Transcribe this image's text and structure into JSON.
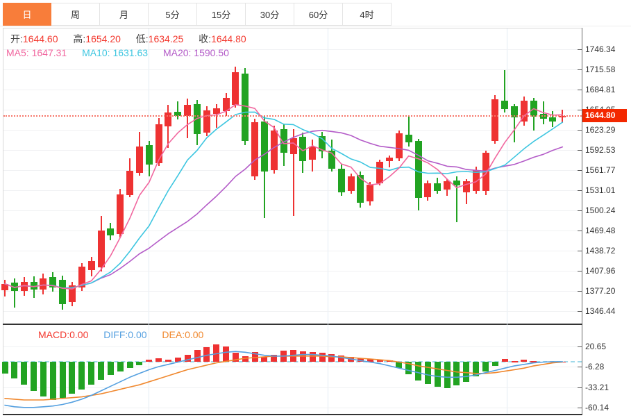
{
  "tabs": {
    "items": [
      {
        "label": "日",
        "active": true
      },
      {
        "label": "周",
        "active": false
      },
      {
        "label": "月",
        "active": false
      },
      {
        "label": "5分",
        "active": false
      },
      {
        "label": "15分",
        "active": false
      },
      {
        "label": "30分",
        "active": false
      },
      {
        "label": "60分",
        "active": false
      },
      {
        "label": "4时",
        "active": false
      }
    ]
  },
  "quote_bar": {
    "open_label": "开:",
    "open_value": "1644.60",
    "high_label": "高:",
    "high_value": "1654.20",
    "low_label": "低:",
    "low_value": "1634.25",
    "close_label": "收:",
    "close_value": "1644.80"
  },
  "ma_bar": {
    "ma5_label": "MA5:",
    "ma5_value": "1647.31",
    "ma10_label": "MA10:",
    "ma10_value": "1631.63",
    "ma20_label": "MA20:",
    "ma20_value": "1590.50"
  },
  "macd_bar": {
    "macd_label": "MACD:",
    "macd_value": "0.00",
    "diff_label": "DIFF:",
    "diff_value": "0.00",
    "dea_label": "DEA:",
    "dea_value": "0.00"
  },
  "current_price": {
    "value": "1644.80"
  },
  "colors": {
    "up": "#ee3232",
    "down": "#22a322",
    "ma5": "#f1679f",
    "ma10": "#3ec6e0",
    "ma20": "#b45cc8",
    "diff": "#55a0e0",
    "dea": "#f0882e",
    "quote_value": "#f3392f",
    "tab_active": "#f87d3a",
    "price_badge": "#f32800",
    "dotted_line": "#f7766a",
    "zero_line": "#9fd9ea"
  },
  "chart_data": {
    "type": "candlestick_with_macd",
    "title": "",
    "description": "Daily candlestick chart (Chinese convention: red=up, green=down) with MA5/MA10/MA20 overlays, current price 1644.80, and MACD sub-panel (values estimated from pixels)",
    "y_axis": {
      "max": 1746.34,
      "min": 1346.44,
      "labels": [
        1746.34,
        1715.58,
        1684.81,
        1654.05,
        1623.29,
        1592.53,
        1561.77,
        1531.01,
        1500.24,
        1469.48,
        1438.72,
        1407.96,
        1377.2,
        1346.44
      ]
    },
    "macd_axis": {
      "max": 20.65,
      "min": -60.14,
      "labels": [
        20.65,
        -6.28,
        -33.21,
        -60.14
      ]
    },
    "current_price": 1644.8,
    "ma_last": {
      "ma5": 1647.31,
      "ma10": 1631.63,
      "ma20": 1590.5
    },
    "candles": [
      [
        1378,
        1394,
        1369,
        1388
      ],
      [
        1390,
        1396,
        1352,
        1377
      ],
      [
        1377,
        1398,
        1370,
        1391
      ],
      [
        1391,
        1400,
        1367,
        1379
      ],
      [
        1379,
        1404,
        1372,
        1396
      ],
      [
        1398,
        1406,
        1376,
        1383
      ],
      [
        1394,
        1401,
        1349,
        1357
      ],
      [
        1360,
        1391,
        1354,
        1386
      ],
      [
        1383,
        1420,
        1377,
        1414
      ],
      [
        1409,
        1429,
        1399,
        1423
      ],
      [
        1413,
        1492,
        1407,
        1470
      ],
      [
        1473,
        1481,
        1455,
        1462
      ],
      [
        1464,
        1533,
        1459,
        1525
      ],
      [
        1524,
        1580,
        1520,
        1561
      ],
      [
        1558,
        1620,
        1553,
        1598
      ],
      [
        1600,
        1606,
        1552,
        1570
      ],
      [
        1572,
        1641,
        1568,
        1632
      ],
      [
        1629,
        1661,
        1596,
        1650
      ],
      [
        1651,
        1667,
        1639,
        1644
      ],
      [
        1644,
        1671,
        1611,
        1661
      ],
      [
        1663,
        1669,
        1600,
        1617
      ],
      [
        1619,
        1659,
        1614,
        1653
      ],
      [
        1648,
        1663,
        1627,
        1656
      ],
      [
        1652,
        1680,
        1645,
        1672
      ],
      [
        1662,
        1720,
        1657,
        1711
      ],
      [
        1709,
        1718,
        1600,
        1606
      ],
      [
        1552,
        1640,
        1547,
        1635
      ],
      [
        1636,
        1643,
        1489,
        1560
      ],
      [
        1562,
        1630,
        1556,
        1622
      ],
      [
        1624,
        1632,
        1568,
        1588
      ],
      [
        1586,
        1624,
        1492,
        1611
      ],
      [
        1613,
        1619,
        1558,
        1576
      ],
      [
        1578,
        1608,
        1560,
        1598
      ],
      [
        1614,
        1620,
        1580,
        1590
      ],
      [
        1592,
        1608,
        1560,
        1564
      ],
      [
        1564,
        1570,
        1522,
        1528
      ],
      [
        1530,
        1556,
        1526,
        1552
      ],
      [
        1554,
        1560,
        1504,
        1512
      ],
      [
        1514,
        1544,
        1508,
        1540
      ],
      [
        1542,
        1578,
        1538,
        1574
      ],
      [
        1576,
        1584,
        1566,
        1581
      ],
      [
        1580,
        1622,
        1576,
        1618
      ],
      [
        1616,
        1645,
        1598,
        1604
      ],
      [
        1606,
        1610,
        1500,
        1519
      ],
      [
        1520,
        1546,
        1515,
        1542
      ],
      [
        1542,
        1550,
        1526,
        1530
      ],
      [
        1532,
        1548,
        1522,
        1545
      ],
      [
        1546,
        1552,
        1482,
        1538
      ],
      [
        1528,
        1548,
        1510,
        1545
      ],
      [
        1530,
        1567,
        1526,
        1562
      ],
      [
        1530,
        1592,
        1524,
        1588
      ],
      [
        1606,
        1676,
        1602,
        1670
      ],
      [
        1668,
        1714,
        1650,
        1655
      ],
      [
        1659,
        1663,
        1604,
        1642
      ],
      [
        1636,
        1674,
        1630,
        1668
      ],
      [
        1668,
        1672,
        1622,
        1643
      ],
      [
        1648,
        1667,
        1632,
        1640
      ],
      [
        1642,
        1652,
        1628,
        1636
      ],
      [
        1644.6,
        1654.2,
        1634.25,
        1644.8
      ]
    ],
    "macd": {
      "histogram": [
        -15,
        -22,
        -30,
        -38,
        -45,
        -50,
        -47,
        -42,
        -36,
        -30,
        -23,
        -17,
        -12,
        -8,
        -4,
        3,
        5,
        3,
        6,
        10,
        16,
        20,
        23,
        21,
        12,
        8,
        13,
        7,
        10,
        15,
        16,
        14,
        13,
        12,
        11,
        9,
        7,
        5,
        4,
        3,
        2,
        -8,
        -16,
        -24,
        -29,
        -33,
        -34,
        -31,
        -26,
        -19,
        -12,
        -5,
        4,
        1,
        3,
        1,
        0.5,
        0.5,
        0.5
      ],
      "diff": [
        -57,
        -59,
        -60,
        -60,
        -59,
        -58,
        -56,
        -53,
        -49,
        -44,
        -38,
        -32,
        -26,
        -20,
        -15,
        -10,
        -6,
        -3,
        0,
        3,
        6,
        9,
        11,
        13,
        14,
        13,
        11,
        9,
        8,
        8,
        9,
        10,
        10,
        9,
        8,
        6,
        4,
        2,
        0,
        -2,
        -5,
        -8,
        -11,
        -14,
        -17,
        -19,
        -20,
        -20,
        -19,
        -17,
        -14,
        -11,
        -8,
        -5,
        -3,
        -1,
        0,
        0.5,
        0.5
      ],
      "dea": [
        -48,
        -49,
        -50,
        -50,
        -50,
        -49,
        -48,
        -47,
        -46,
        -44,
        -42,
        -39,
        -36,
        -33,
        -30,
        -26,
        -22,
        -18,
        -14,
        -10,
        -7,
        -4,
        -1,
        1,
        3,
        5,
        6,
        7,
        8,
        8,
        8,
        8,
        8,
        8,
        7,
        7,
        6,
        5,
        4,
        3,
        2,
        0,
        -2,
        -5,
        -7,
        -9,
        -11,
        -13,
        -14,
        -15,
        -15,
        -14,
        -12,
        -10,
        -8,
        -5,
        -3,
        -1,
        0
      ]
    },
    "grid": true,
    "legend_position": "top-left-inline"
  }
}
